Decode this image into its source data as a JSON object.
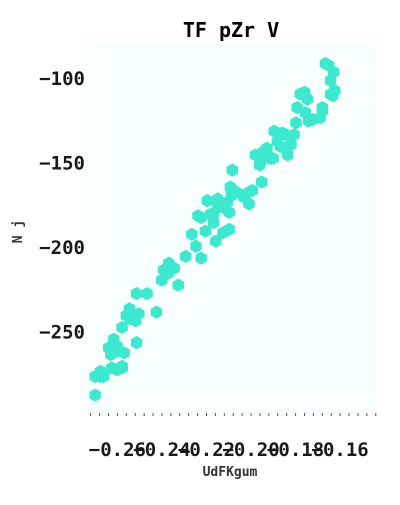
{
  "chart_data": {
    "type": "scatter",
    "title": "TF pZr V",
    "xlabel": "UdFKgum",
    "ylabel": "N j",
    "xlim": [
      -0.275,
      -0.143
    ],
    "ylim": [
      -297,
      -80
    ],
    "xticks": [
      -0.26,
      -0.24,
      -0.22,
      -0.2,
      -0.18,
      -0.16
    ],
    "xtick_labels": [
      "−0.26",
      "−0.24",
      "−0.22",
      "−0.20",
      "−0.18",
      "−0.16"
    ],
    "yticks": [
      -250,
      -200,
      -150,
      -100
    ],
    "ytick_labels": [
      "−250",
      "−200",
      "−150",
      "−100"
    ],
    "grid": false,
    "legend": "none",
    "marker": "hexagon",
    "colors": {
      "points": "#3ee8cf",
      "plot_bg": "#f7ffff",
      "text": "#1a1a1a"
    },
    "points": [
      [
        -0.27,
        -287.0
      ],
      [
        -0.27,
        -276.0
      ],
      [
        -0.2676,
        -276.0
      ],
      [
        -0.2662,
        -276.0
      ],
      [
        -0.2676,
        -273.0
      ],
      [
        -0.2639,
        -259.0
      ],
      [
        -0.263,
        -263.0
      ],
      [
        -0.2616,
        -262.0
      ],
      [
        -0.2602,
        -272.0
      ],
      [
        -0.2579,
        -270.0
      ],
      [
        -0.2625,
        -271.0
      ],
      [
        -0.2616,
        -254.0
      ],
      [
        -0.2602,
        -258.0
      ],
      [
        -0.2579,
        -247.0
      ],
      [
        -0.257,
        -262.0
      ],
      [
        -0.2579,
        -271.0
      ],
      [
        -0.256,
        -240.0
      ],
      [
        -0.2546,
        -236.0
      ],
      [
        -0.2542,
        -242.0
      ],
      [
        -0.2532,
        -240.0
      ],
      [
        -0.2518,
        -243.0
      ],
      [
        -0.2504,
        -239.0
      ],
      [
        -0.2514,
        -256.0
      ],
      [
        -0.2514,
        -227.0
      ],
      [
        -0.2467,
        -227.0
      ],
      [
        -0.2425,
        -238.0
      ],
      [
        -0.2401,
        -219.0
      ],
      [
        -0.2392,
        -213.0
      ],
      [
        -0.2373,
        -215.0
      ],
      [
        -0.2369,
        -209.0
      ],
      [
        -0.2345,
        -212.0
      ],
      [
        -0.2327,
        -222.0
      ],
      [
        -0.2294,
        -205.0
      ],
      [
        -0.2266,
        -192.0
      ],
      [
        -0.2247,
        -199.0
      ],
      [
        -0.2238,
        -181.0
      ],
      [
        -0.2224,
        -182.0
      ],
      [
        -0.2224,
        -206.0
      ],
      [
        -0.2205,
        -190.0
      ],
      [
        -0.2196,
        -172.0
      ],
      [
        -0.2182,
        -180.0
      ],
      [
        -0.2168,
        -185.0
      ],
      [
        -0.2168,
        -180.0
      ],
      [
        -0.2158,
        -196.0
      ],
      [
        -0.2149,
        -176.0
      ],
      [
        -0.2149,
        -171.0
      ],
      [
        -0.2126,
        -176.0
      ],
      [
        -0.2126,
        -191.0
      ],
      [
        -0.2107,
        -173.0
      ],
      [
        -0.2098,
        -179.0
      ],
      [
        -0.2098,
        -189.0
      ],
      [
        -0.2093,
        -164.0
      ],
      [
        -0.2088,
        -169.0
      ],
      [
        -0.2084,
        -154.0
      ],
      [
        -0.2065,
        -167.0
      ],
      [
        -0.2032,
        -170.0
      ],
      [
        -0.2023,
        -168.0
      ],
      [
        -0.2009,
        -174.0
      ],
      [
        -0.1994,
        -166.0
      ],
      [
        -0.198,
        -145.0
      ],
      [
        -0.1962,
        -151.0
      ],
      [
        -0.1957,
        -149.0
      ],
      [
        -0.1952,
        -161.0
      ],
      [
        -0.1943,
        -143.0
      ],
      [
        -0.1929,
        -141.0
      ],
      [
        -0.1915,
        -147.0
      ],
      [
        -0.1901,
        -147.0
      ],
      [
        -0.1896,
        -131.0
      ],
      [
        -0.1882,
        -137.0
      ],
      [
        -0.1868,
        -140.0
      ],
      [
        -0.1859,
        -132.0
      ],
      [
        -0.1845,
        -133.0
      ],
      [
        -0.1835,
        -145.0
      ],
      [
        -0.1821,
        -139.0
      ],
      [
        -0.1807,
        -133.0
      ],
      [
        -0.1798,
        -126.0
      ],
      [
        -0.1793,
        -117.0
      ],
      [
        -0.1779,
        -109.0
      ],
      [
        -0.176,
        -108.0
      ],
      [
        -0.1746,
        -112.0
      ],
      [
        -0.1756,
        -120.0
      ],
      [
        -0.1742,
        -125.0
      ],
      [
        -0.1723,
        -124.0
      ],
      [
        -0.169,
        -123.0
      ],
      [
        -0.168,
        -119.0
      ],
      [
        -0.168,
        -117.0
      ],
      [
        -0.1666,
        -91.0
      ],
      [
        -0.1652,
        -92.0
      ],
      [
        -0.1643,
        -101.0
      ],
      [
        -0.1643,
        -109.0
      ],
      [
        -0.1624,
        -107.0
      ],
      [
        -0.1629,
        -96.0
      ],
      [
        -0.1633,
        -110.0
      ]
    ]
  }
}
